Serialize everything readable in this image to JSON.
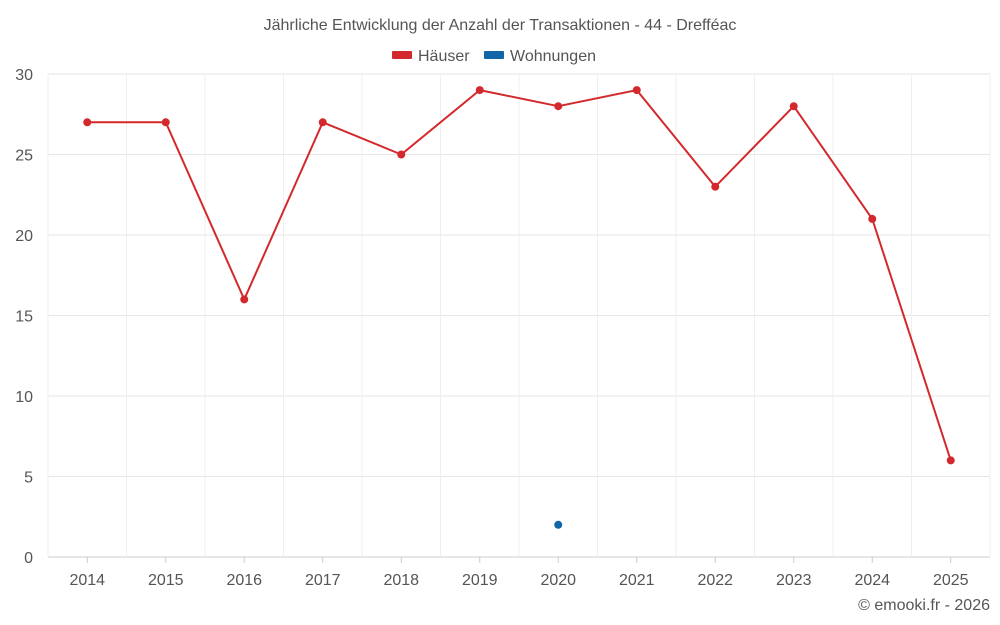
{
  "chart_data": {
    "type": "line",
    "title": "Jährliche Entwicklung der Anzahl der Transaktionen - 44 - Drefféac",
    "xlabel": "",
    "ylabel": "",
    "categories": [
      "2014",
      "2015",
      "2016",
      "2017",
      "2018",
      "2019",
      "2020",
      "2021",
      "2022",
      "2023",
      "2024",
      "2025"
    ],
    "ylim": [
      0,
      30
    ],
    "yticks": [
      0,
      5,
      10,
      15,
      20,
      25,
      30
    ],
    "grid": true,
    "legend_position": "top-center",
    "series": [
      {
        "name": "Häuser",
        "color": "#d3292c",
        "values": [
          27,
          27,
          16,
          27,
          25,
          29,
          28,
          29,
          23,
          28,
          21,
          6
        ]
      },
      {
        "name": "Wohnungen",
        "color": "#0f67a7",
        "values": [
          null,
          null,
          null,
          null,
          null,
          null,
          2,
          null,
          null,
          null,
          null,
          null
        ]
      }
    ]
  },
  "credit": "© emooki.fr - 2026"
}
